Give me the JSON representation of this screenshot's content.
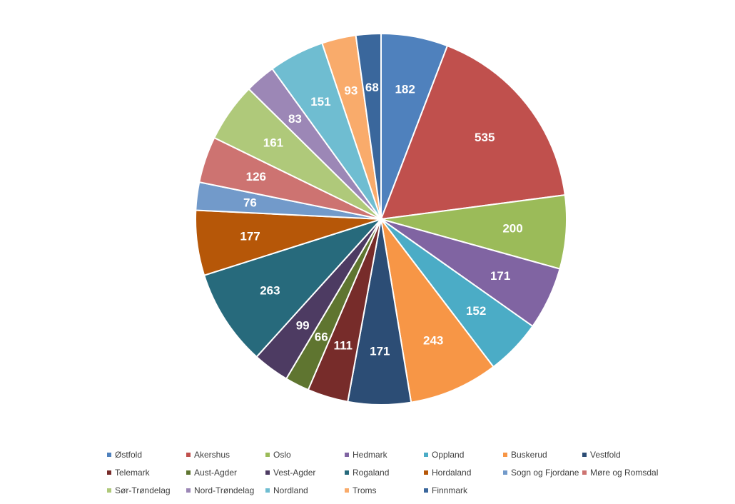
{
  "chart_data": {
    "type": "pie",
    "categories": [
      "Østfold",
      "Akershus",
      "Oslo",
      "Hedmark",
      "Oppland",
      "Buskerud",
      "Vestfold",
      "Telemark",
      "Aust-Agder",
      "Vest-Agder",
      "Rogaland",
      "Hordaland",
      "Sogn og Fjordane",
      "Møre og Romsdal",
      "Sør-Trøndelag",
      "Nord-Trøndelag",
      "Nordland",
      "Troms",
      "Finnmark"
    ],
    "values": [
      182,
      535,
      200,
      171,
      152,
      243,
      171,
      111,
      66,
      99,
      263,
      177,
      76,
      126,
      161,
      83,
      151,
      93,
      68
    ],
    "colors": [
      "#4F81BD",
      "#C0504D",
      "#9BBB59",
      "#8064A2",
      "#4BACC6",
      "#F79646",
      "#2C4D75",
      "#772C2A",
      "#5F7530",
      "#4D3B62",
      "#276A7C",
      "#B65708",
      "#729ACA",
      "#CD7371",
      "#AFC97A",
      "#9C87B6",
      "#6FBDD1",
      "#F9AB6B",
      "#3A679C"
    ],
    "title": "",
    "legend_position": "bottom",
    "data_labels": "values-inside"
  }
}
